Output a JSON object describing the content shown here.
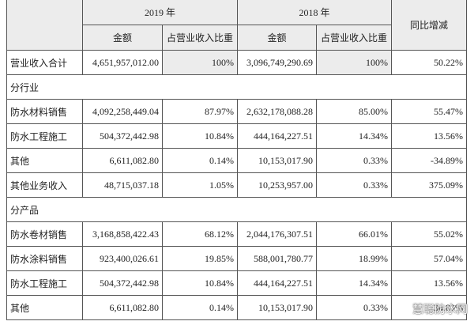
{
  "header": {
    "year_a": "2019 年",
    "year_b": "2018 年",
    "change": "同比增减",
    "sub": [
      "金额",
      "占营业收入比重",
      "金额",
      "占营业收入比重"
    ]
  },
  "table": {
    "rows": [
      [
        "营业收入合计",
        "4,651,957,012.00",
        "100%",
        "3,096,749,290.69",
        "100%",
        "50.22%"
      ],
      [
        "分行业"
      ],
      [
        "防水材料销售",
        "4,092,258,449.04",
        "87.97%",
        "2,632,178,088.28",
        "85.00%",
        "55.47%"
      ],
      [
        "防水工程施工",
        "504,372,442.98",
        "10.84%",
        "444,164,227.51",
        "14.34%",
        "13.56%"
      ],
      [
        "其他",
        "6,611,082.80",
        "0.14%",
        "10,153,017.90",
        "0.33%",
        "-34.89%"
      ],
      [
        "其他业务收入",
        "48,715,037.18",
        "1.05%",
        "10,253,957.00",
        "0.33%",
        "375.09%"
      ],
      [
        "分产品"
      ],
      [
        "防水卷材销售",
        "3,168,858,422.43",
        "68.12%",
        "2,044,176,307.51",
        "66.01%",
        "55.02%"
      ],
      [
        "防水涂料销售",
        "923,400,026.61",
        "19.85%",
        "588,001,780.77",
        "18.99%",
        "57.04%"
      ],
      [
        "防水工程施工",
        "504,372,442.98",
        "10.84%",
        "444,164,227.51",
        "14.34%",
        "13.56%"
      ],
      [
        "其他",
        "6,611,082.80",
        "0.14%",
        "10,153,017.90",
        "0.33%",
        "-34.89%"
      ]
    ]
  },
  "watermark": "慧聪防水网"
}
